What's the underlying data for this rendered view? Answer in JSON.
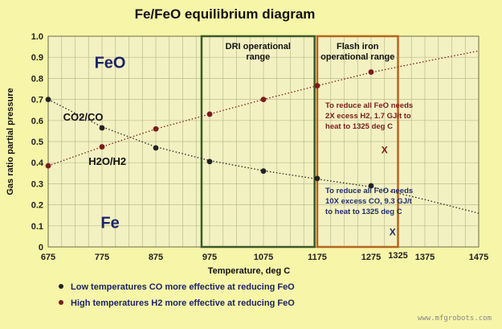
{
  "chart_data": {
    "type": "line",
    "title": "Fe/FeO equilibrium diagram",
    "xlabel": "Temperature, deg C",
    "ylabel": "Gas ratio partial pressure",
    "xlim": [
      675,
      1475
    ],
    "ylim": [
      0,
      1.0
    ],
    "xticks": [
      {
        "value": 675,
        "label": "675"
      },
      {
        "value": 775,
        "label": "775"
      },
      {
        "value": 875,
        "label": "875"
      },
      {
        "value": 975,
        "label": "975"
      },
      {
        "value": 1075,
        "label": "1075"
      },
      {
        "value": 1175,
        "label": "1175"
      },
      {
        "value": 1275,
        "label": "1275"
      },
      {
        "value": 1375,
        "label": "1375"
      },
      {
        "value": 1475,
        "label": "1475"
      }
    ],
    "yticks": [
      {
        "value": 0,
        "label": "0"
      },
      {
        "value": 0.1,
        "label": "0.1"
      },
      {
        "value": 0.2,
        "label": "0.2"
      },
      {
        "value": 0.3,
        "label": "0.3"
      },
      {
        "value": 0.4,
        "label": "0.4"
      },
      {
        "value": 0.5,
        "label": "0.5"
      },
      {
        "value": 0.6,
        "label": "0.6"
      },
      {
        "value": 0.7,
        "label": "0.7"
      },
      {
        "value": 0.8,
        "label": "0.8"
      },
      {
        "value": 0.9,
        "label": "0.9"
      },
      {
        "value": 1.0,
        "label": "1.0"
      }
    ],
    "extra_tick": {
      "value": 1325,
      "label": "1325"
    },
    "grid": true,
    "series": [
      {
        "name": "CO2/CO",
        "color": "#222222",
        "points": [
          [
            675,
            0.7
          ],
          [
            775,
            0.565
          ],
          [
            875,
            0.47
          ],
          [
            975,
            0.405
          ],
          [
            1075,
            0.36
          ],
          [
            1175,
            0.325
          ],
          [
            1275,
            0.29
          ]
        ],
        "curve": [
          [
            675,
            0.7
          ],
          [
            775,
            0.57
          ],
          [
            875,
            0.475
          ],
          [
            975,
            0.41
          ],
          [
            1075,
            0.362
          ],
          [
            1175,
            0.322
          ],
          [
            1275,
            0.285
          ],
          [
            1375,
            0.225
          ],
          [
            1475,
            0.16
          ]
        ]
      },
      {
        "name": "H2O/H2",
        "color": "#7a1c1c",
        "points": [
          [
            675,
            0.385
          ],
          [
            775,
            0.475
          ],
          [
            875,
            0.56
          ],
          [
            975,
            0.63
          ],
          [
            1075,
            0.7
          ],
          [
            1175,
            0.765
          ],
          [
            1275,
            0.83
          ]
        ],
        "curve": [
          [
            675,
            0.385
          ],
          [
            775,
            0.475
          ],
          [
            875,
            0.56
          ],
          [
            975,
            0.63
          ],
          [
            1075,
            0.7
          ],
          [
            1175,
            0.765
          ],
          [
            1275,
            0.828
          ],
          [
            1375,
            0.88
          ],
          [
            1475,
            0.93
          ]
        ]
      }
    ],
    "regions": [
      {
        "label": "FeO",
        "x": 790,
        "y": 0.85
      },
      {
        "label": "Fe",
        "x": 790,
        "y": 0.09
      }
    ],
    "series_labels": [
      {
        "text": "CO2/CO",
        "x": 740,
        "y": 0.6
      },
      {
        "text": "H2O/H2",
        "x": 785,
        "y": 0.39
      }
    ],
    "ranges": [
      {
        "name": "DRI operational range",
        "lines": [
          "DRI operational",
          "range"
        ],
        "x_start": 960,
        "x_end": 1170,
        "color": "#3a5a28"
      },
      {
        "name": "Flash iron operational range",
        "lines": [
          "Flash iron",
          "operational range"
        ],
        "x_start": 1175,
        "x_end": 1325,
        "color": "#b4661e"
      }
    ],
    "annotations": [
      {
        "lines": [
          "To reduce all FeO needs",
          "2X  ecess H2, 1.7 GJ/t to",
          "heat to 1325 deg C"
        ],
        "x": 1190,
        "y": 0.66,
        "color": "#7a1c1c"
      },
      {
        "lines": [
          "To reduce all FeO needs",
          "10X excess CO, 9.3 GJ/t",
          "to heat to 1325 deg C"
        ],
        "x": 1190,
        "y": 0.255,
        "color": "#1e2e6a"
      }
    ],
    "markers": [
      {
        "text": "X",
        "x": 1300,
        "y": 0.445,
        "color": "#7a1c1c"
      },
      {
        "text": "X",
        "x": 1315,
        "y": 0.055,
        "color": "#1e2e6a"
      }
    ],
    "legend": [
      {
        "text": "Low temperatures CO more effective at reducing FeO",
        "marker_color": "#222222"
      },
      {
        "text": "High temperatures H2 more effective at reducing FeO",
        "marker_color": "#7a1c1c"
      }
    ],
    "legend_placement": "bottom-left"
  },
  "watermark": "www.mfgrobots.com"
}
